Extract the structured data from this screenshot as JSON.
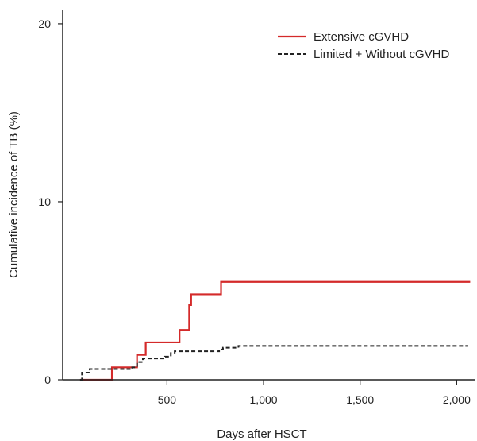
{
  "chart_data": {
    "type": "line",
    "title": "",
    "xlabel": "Days after HSCT",
    "ylabel": "Cumulative incidence of TB (%)",
    "xlim": [
      0,
      2100
    ],
    "ylim": [
      0,
      20.5
    ],
    "x_ticks": [
      500,
      1000,
      1500,
      2000
    ],
    "x_tick_labels": [
      "500",
      "1,000",
      "1,500",
      "2,000"
    ],
    "y_ticks": [
      0,
      10,
      20
    ],
    "y_tick_labels": [
      "0",
      "10",
      "20"
    ],
    "grid": false,
    "legend_position": "top-right",
    "step": true,
    "series": [
      {
        "name": "Extensive cGVHD",
        "color": "#d42a2a",
        "line_style": "solid",
        "x": [
          50,
          215,
          330,
          345,
          390,
          565,
          615,
          625,
          780,
          2070
        ],
        "y": [
          0,
          0.7,
          0.7,
          1.4,
          2.1,
          2.8,
          4.2,
          4.8,
          5.5,
          5.5
        ]
      },
      {
        "name": "Limited + Without cGVHD",
        "color": "#222222",
        "line_style": "dashed",
        "x": [
          50,
          60,
          100,
          130,
          210,
          320,
          345,
          375,
          450,
          490,
          520,
          540,
          640,
          770,
          790,
          870,
          2060
        ],
        "y": [
          0,
          0.4,
          0.6,
          0.6,
          0.6,
          0.7,
          1.0,
          1.2,
          1.2,
          1.3,
          1.5,
          1.6,
          1.6,
          1.7,
          1.8,
          1.9,
          1.9
        ]
      }
    ]
  }
}
